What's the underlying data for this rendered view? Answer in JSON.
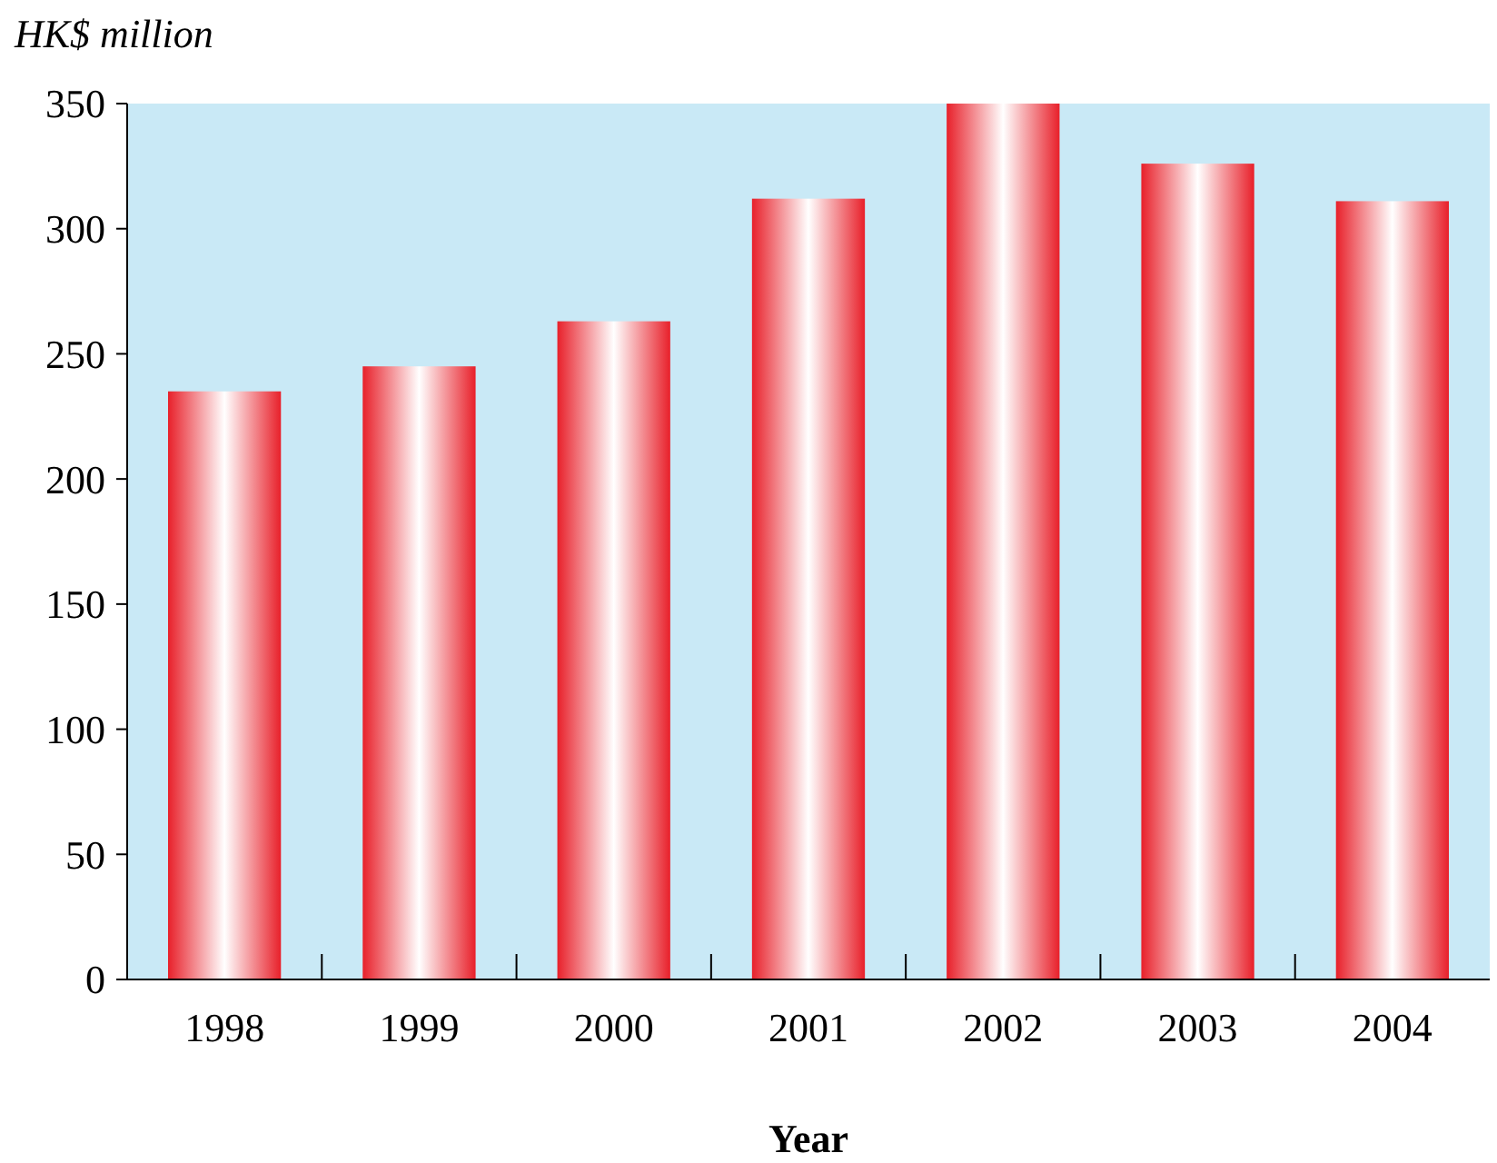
{
  "chart_data": {
    "type": "bar",
    "xlabel": "Year",
    "ylabel": "HK$ million",
    "categories": [
      "1998",
      "1999",
      "2000",
      "2001",
      "2002",
      "2003",
      "2004"
    ],
    "values": [
      235,
      245,
      263,
      312,
      350,
      326,
      311
    ],
    "color": "#e8202a",
    "ylim": [
      0,
      350
    ],
    "yticks": [
      0,
      50,
      100,
      150,
      200,
      250,
      300,
      350
    ],
    "grid": false
  }
}
